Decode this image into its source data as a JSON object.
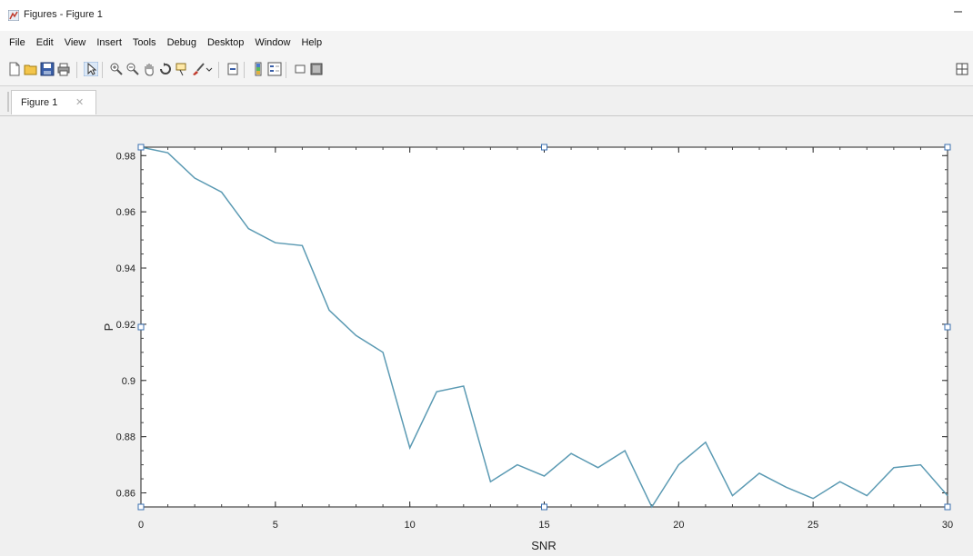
{
  "window": {
    "title": "Figures - Figure 1",
    "minimize_glyph": "–"
  },
  "menu": [
    "File",
    "Edit",
    "View",
    "Insert",
    "Tools",
    "Debug",
    "Desktop",
    "Window",
    "Help"
  ],
  "toolbar": {
    "icons": [
      "new-file-icon",
      "open-file-icon",
      "save-icon",
      "print-icon",
      "select-pointer-icon",
      "zoom-in-icon",
      "zoom-out-icon",
      "pan-hand-icon",
      "rotate-3d-icon",
      "data-cursor-icon",
      "brush-icon",
      "link-icon",
      "colorbar-icon",
      "legend-icon",
      "hide-plot-tools-icon",
      "show-plot-tools-icon"
    ],
    "dock_icon": "dock-grid-icon"
  },
  "tabs": [
    {
      "label": "Figure 1",
      "close": "✕"
    }
  ],
  "chart_data": {
    "type": "line",
    "title": "",
    "xlabel": "SNR",
    "ylabel": "P",
    "xlim": [
      0,
      30
    ],
    "ylim": [
      0.855,
      0.983
    ],
    "xticks": [
      0,
      5,
      10,
      15,
      20,
      25,
      30
    ],
    "xtick_labels": [
      "0",
      "5",
      "10",
      "15",
      "20",
      "25",
      "30"
    ],
    "yticks": [
      0.86,
      0.88,
      0.9,
      0.92,
      0.94,
      0.96,
      0.98
    ],
    "ytick_labels": [
      "0.86",
      "0.88",
      "0.9",
      "0.92",
      "0.94",
      "0.96",
      "0.98"
    ],
    "grid": false,
    "line_color": "#5b9ab3",
    "series": [
      {
        "x": [
          0,
          1,
          2,
          3,
          4,
          5,
          6,
          7,
          8,
          9,
          10,
          11,
          12,
          13,
          14,
          15,
          16,
          17,
          18,
          19,
          20,
          21,
          22,
          23,
          24,
          25,
          26,
          27,
          28,
          29,
          30
        ],
        "values": [
          0.983,
          0.981,
          0.972,
          0.967,
          0.954,
          0.949,
          0.948,
          0.925,
          0.916,
          0.91,
          0.876,
          0.896,
          0.898,
          0.864,
          0.87,
          0.866,
          0.874,
          0.869,
          0.875,
          0.855,
          0.87,
          0.878,
          0.859,
          0.867,
          0.862,
          0.858,
          0.864,
          0.859,
          0.869,
          0.87,
          0.859
        ]
      }
    ]
  }
}
